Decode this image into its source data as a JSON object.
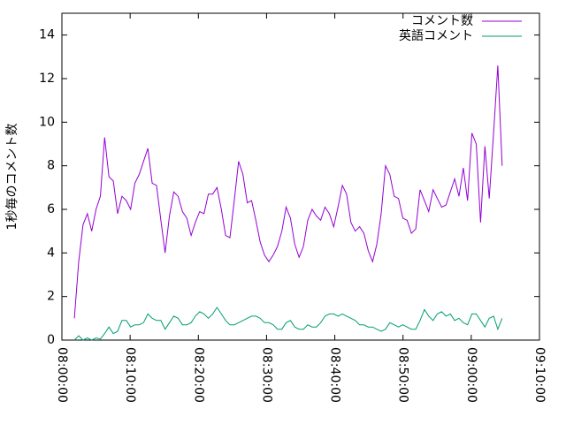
{
  "chart_data": {
    "type": "line",
    "y_label": "1秒毎のコメント数",
    "x": [
      "08:01:50",
      "08:02:28",
      "08:03:06",
      "08:03:44",
      "08:04:22",
      "08:05:00",
      "08:05:38",
      "08:06:16",
      "08:06:54",
      "08:07:32",
      "08:08:10",
      "08:08:48",
      "08:09:26",
      "08:10:04",
      "08:10:42",
      "08:11:20",
      "08:11:58",
      "08:12:36",
      "08:13:14",
      "08:13:52",
      "08:14:30",
      "08:15:08",
      "08:15:46",
      "08:16:24",
      "08:17:02",
      "08:17:40",
      "08:18:18",
      "08:18:56",
      "08:19:34",
      "08:20:12",
      "08:20:50",
      "08:21:28",
      "08:22:06",
      "08:22:44",
      "08:23:22",
      "08:24:00",
      "08:24:38",
      "08:25:16",
      "08:25:54",
      "08:26:32",
      "08:27:10",
      "08:27:48",
      "08:28:26",
      "08:29:04",
      "08:29:42",
      "08:30:20",
      "08:30:58",
      "08:31:36",
      "08:32:14",
      "08:32:52",
      "08:33:30",
      "08:34:08",
      "08:34:46",
      "08:35:24",
      "08:36:02",
      "08:36:40",
      "08:37:18",
      "08:37:56",
      "08:38:34",
      "08:39:12",
      "08:39:50",
      "08:40:28",
      "08:41:06",
      "08:41:44",
      "08:42:22",
      "08:43:00",
      "08:43:38",
      "08:44:16",
      "08:44:54",
      "08:45:32",
      "08:46:10",
      "08:46:48",
      "08:47:26",
      "08:48:04",
      "08:48:42",
      "08:49:20",
      "08:49:58",
      "08:50:36",
      "08:51:14",
      "08:51:52",
      "08:52:30",
      "08:53:08",
      "08:53:46",
      "08:54:24",
      "08:55:02",
      "08:55:40",
      "08:56:18",
      "08:56:56",
      "08:57:34",
      "08:58:12",
      "08:58:50",
      "08:59:28",
      "09:00:06",
      "09:00:44",
      "09:01:22",
      "09:02:00",
      "09:02:38",
      "09:03:16",
      "09:03:54",
      "09:04:32"
    ],
    "series": [
      {
        "name": "コメント数",
        "color": "#9400d3",
        "values": [
          1.0,
          3.6,
          5.3,
          5.8,
          5.0,
          6.0,
          6.6,
          9.3,
          7.5,
          7.3,
          5.8,
          6.6,
          6.4,
          6.0,
          7.2,
          7.6,
          8.2,
          8.8,
          7.2,
          7.1,
          5.5,
          4.0,
          5.7,
          6.8,
          6.6,
          5.9,
          5.6,
          4.8,
          5.4,
          5.9,
          5.8,
          6.7,
          6.7,
          7.0,
          6.0,
          4.8,
          4.7,
          6.4,
          8.2,
          7.6,
          6.3,
          6.4,
          5.5,
          4.5,
          3.9,
          3.6,
          3.9,
          4.3,
          5.0,
          6.1,
          5.6,
          4.4,
          3.8,
          4.3,
          5.5,
          6.0,
          5.7,
          5.5,
          6.1,
          5.8,
          5.2,
          6.1,
          7.1,
          6.7,
          5.4,
          5.0,
          5.2,
          4.9,
          4.1,
          3.6,
          4.4,
          5.8,
          8.0,
          7.6,
          6.6,
          6.5,
          5.6,
          5.5,
          4.9,
          5.1,
          6.9,
          6.4,
          5.9,
          6.9,
          6.5,
          6.1,
          6.2,
          6.8,
          7.4,
          6.6,
          7.9,
          6.4,
          9.5,
          9.0,
          5.4,
          8.9,
          6.5,
          9.5,
          12.6,
          8.0
        ]
      },
      {
        "name": "英語コメント",
        "color": "#009e73",
        "values": [
          0,
          0.2,
          0,
          0.1,
          0,
          0.1,
          0.05,
          0.3,
          0.6,
          0.3,
          0.4,
          0.9,
          0.9,
          0.6,
          0.7,
          0.7,
          0.8,
          1.2,
          1.0,
          0.9,
          0.9,
          0.5,
          0.8,
          1.1,
          1.0,
          0.7,
          0.7,
          0.8,
          1.1,
          1.3,
          1.2,
          1.0,
          1.2,
          1.5,
          1.2,
          0.9,
          0.7,
          0.7,
          0.8,
          0.9,
          1.0,
          1.1,
          1.1,
          1.0,
          0.8,
          0.8,
          0.7,
          0.5,
          0.5,
          0.8,
          0.9,
          0.6,
          0.5,
          0.5,
          0.7,
          0.6,
          0.6,
          0.8,
          1.1,
          1.2,
          1.2,
          1.1,
          1.2,
          1.1,
          1.0,
          0.9,
          0.7,
          0.7,
          0.6,
          0.6,
          0.5,
          0.4,
          0.5,
          0.8,
          0.7,
          0.6,
          0.7,
          0.6,
          0.5,
          0.5,
          0.9,
          1.4,
          1.1,
          0.9,
          1.2,
          1.3,
          1.1,
          1.2,
          0.9,
          1.0,
          0.8,
          0.7,
          1.2,
          1.2,
          0.9,
          0.6,
          1.0,
          1.1,
          0.5,
          1.0
        ]
      }
    ],
    "xlim": [
      "08:00:00",
      "09:10:00"
    ],
    "xticks": [
      "08:00:00",
      "08:10:00",
      "08:20:00",
      "08:30:00",
      "08:40:00",
      "08:50:00",
      "09:00:00",
      "09:10:00"
    ],
    "ylim": [
      0,
      15
    ],
    "yticks": [
      0,
      2,
      4,
      6,
      8,
      10,
      12,
      14
    ],
    "legend": "top-right"
  }
}
